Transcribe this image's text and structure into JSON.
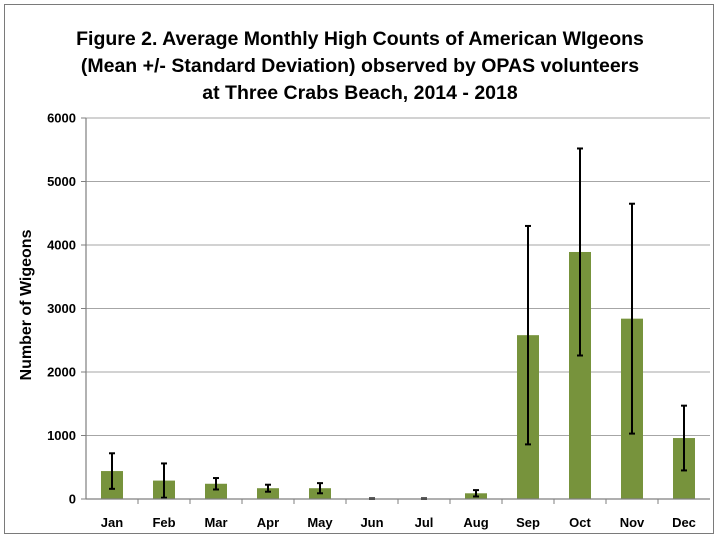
{
  "chart_data": {
    "type": "bar",
    "title_lines": [
      "Figure 2. Average Monthly High Counts of American WIgeons",
      "(Mean +/- Standard Deviation) observed by OPAS volunteers",
      "at Three Crabs Beach, 2014 - 2018"
    ],
    "xlabel": "",
    "ylabel": "Number of Wigeons",
    "categories": [
      "Jan",
      "Feb",
      "Mar",
      "Apr",
      "May",
      "Jun",
      "Jul",
      "Aug",
      "Sep",
      "Oct",
      "Nov",
      "Dec"
    ],
    "values": [
      440,
      290,
      240,
      170,
      170,
      5,
      5,
      90,
      2580,
      3890,
      2840,
      960
    ],
    "errors": [
      280,
      270,
      90,
      55,
      80,
      5,
      5,
      50,
      1720,
      1630,
      1810,
      510
    ],
    "ylim": [
      0,
      6000
    ],
    "yticks": [
      0,
      1000,
      2000,
      3000,
      4000,
      5000,
      6000
    ],
    "grid": true,
    "legend": "none",
    "bar_color": "#77933c",
    "errorbar_color": "#000000"
  }
}
